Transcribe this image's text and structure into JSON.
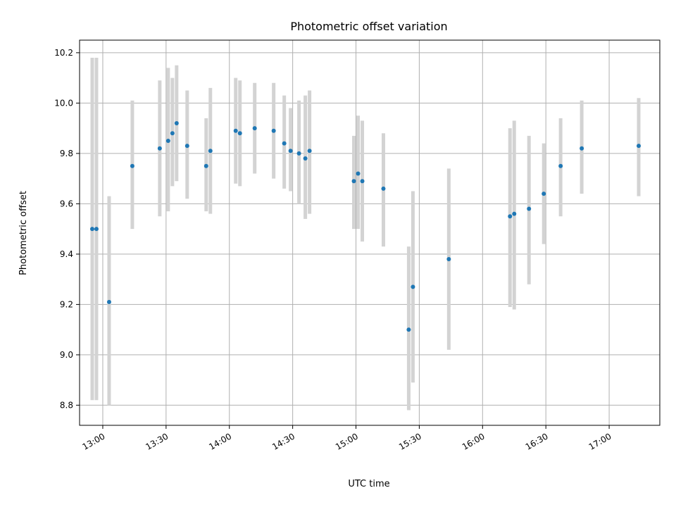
{
  "chart_data": {
    "type": "scatter",
    "title": "Photometric offset variation",
    "xlabel": "UTC time",
    "ylabel": "Photometric offset",
    "x_ticks": [
      "13:00",
      "13:30",
      "14:00",
      "14:30",
      "15:00",
      "15:30",
      "16:00",
      "16:30",
      "17:00"
    ],
    "y_ticks": [
      "8.8",
      "9.0",
      "9.2",
      "9.4",
      "9.6",
      "9.8",
      "10.0",
      "10.2"
    ],
    "xlim": [
      "12:49",
      "17:24"
    ],
    "ylim": [
      8.72,
      10.25
    ],
    "grid": true,
    "colors": {
      "point": "#1f77b4",
      "errorbar": "#d3d3d3",
      "grid": "#b0b0b0"
    },
    "points": [
      {
        "x": "12:55",
        "y": 9.5,
        "ylo": 8.82,
        "yhi": 10.18
      },
      {
        "x": "12:57",
        "y": 9.5,
        "ylo": 8.82,
        "yhi": 10.18
      },
      {
        "x": "13:03",
        "y": 9.21,
        "ylo": 8.8,
        "yhi": 9.63
      },
      {
        "x": "13:14",
        "y": 9.75,
        "ylo": 9.5,
        "yhi": 10.01
      },
      {
        "x": "13:27",
        "y": 9.82,
        "ylo": 9.55,
        "yhi": 10.09
      },
      {
        "x": "13:31",
        "y": 9.85,
        "ylo": 9.57,
        "yhi": 10.14
      },
      {
        "x": "13:33",
        "y": 9.88,
        "ylo": 9.67,
        "yhi": 10.1
      },
      {
        "x": "13:35",
        "y": 9.92,
        "ylo": 9.69,
        "yhi": 10.15
      },
      {
        "x": "13:40",
        "y": 9.83,
        "ylo": 9.62,
        "yhi": 10.05
      },
      {
        "x": "13:49",
        "y": 9.75,
        "ylo": 9.57,
        "yhi": 9.94
      },
      {
        "x": "13:51",
        "y": 9.81,
        "ylo": 9.56,
        "yhi": 10.06
      },
      {
        "x": "14:03",
        "y": 9.89,
        "ylo": 9.68,
        "yhi": 10.1
      },
      {
        "x": "14:05",
        "y": 9.88,
        "ylo": 9.67,
        "yhi": 10.09
      },
      {
        "x": "14:12",
        "y": 9.9,
        "ylo": 9.72,
        "yhi": 10.08
      },
      {
        "x": "14:21",
        "y": 9.89,
        "ylo": 9.7,
        "yhi": 10.08
      },
      {
        "x": "14:26",
        "y": 9.84,
        "ylo": 9.66,
        "yhi": 10.03
      },
      {
        "x": "14:29",
        "y": 9.81,
        "ylo": 9.65,
        "yhi": 9.98
      },
      {
        "x": "14:33",
        "y": 9.8,
        "ylo": 9.6,
        "yhi": 10.01
      },
      {
        "x": "14:36",
        "y": 9.78,
        "ylo": 9.54,
        "yhi": 10.03
      },
      {
        "x": "14:38",
        "y": 9.81,
        "ylo": 9.56,
        "yhi": 10.05
      },
      {
        "x": "14:59",
        "y": 9.69,
        "ylo": 9.5,
        "yhi": 9.87
      },
      {
        "x": "15:01",
        "y": 9.72,
        "ylo": 9.5,
        "yhi": 9.95
      },
      {
        "x": "15:03",
        "y": 9.69,
        "ylo": 9.45,
        "yhi": 9.93
      },
      {
        "x": "15:13",
        "y": 9.66,
        "ylo": 9.43,
        "yhi": 9.88
      },
      {
        "x": "15:25",
        "y": 9.1,
        "ylo": 8.78,
        "yhi": 9.43
      },
      {
        "x": "15:27",
        "y": 9.27,
        "ylo": 8.89,
        "yhi": 9.65
      },
      {
        "x": "15:44",
        "y": 9.38,
        "ylo": 9.02,
        "yhi": 9.74
      },
      {
        "x": "16:13",
        "y": 9.55,
        "ylo": 9.19,
        "yhi": 9.9
      },
      {
        "x": "16:15",
        "y": 9.56,
        "ylo": 9.18,
        "yhi": 9.93
      },
      {
        "x": "16:22",
        "y": 9.58,
        "ylo": 9.28,
        "yhi": 9.87
      },
      {
        "x": "16:29",
        "y": 9.64,
        "ylo": 9.44,
        "yhi": 9.84
      },
      {
        "x": "16:37",
        "y": 9.75,
        "ylo": 9.55,
        "yhi": 9.94
      },
      {
        "x": "16:47",
        "y": 9.82,
        "ylo": 9.64,
        "yhi": 10.01
      },
      {
        "x": "17:14",
        "y": 9.83,
        "ylo": 9.63,
        "yhi": 10.02
      }
    ]
  }
}
